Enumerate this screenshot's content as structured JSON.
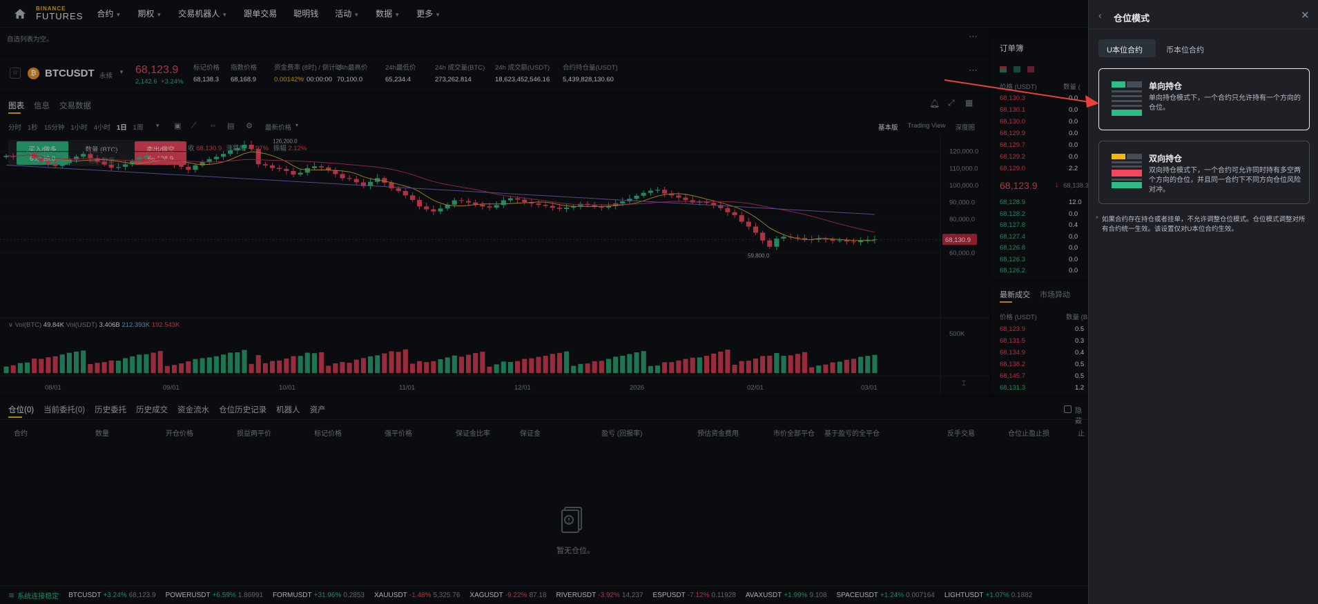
{
  "nav": {
    "logo_top": "BINANCE",
    "logo_bottom": "FUTURES",
    "items": [
      {
        "label": "合约",
        "caret": true
      },
      {
        "label": "期权",
        "caret": true
      },
      {
        "label": "交易机器人",
        "caret": true
      },
      {
        "label": "跟单交易",
        "caret": false
      },
      {
        "label": "聪明钱",
        "caret": false
      },
      {
        "label": "活动",
        "caret": true
      },
      {
        "label": "数据",
        "caret": true
      },
      {
        "label": "更多",
        "caret": true
      }
    ]
  },
  "watchlist": {
    "empty_text": "自选列表为空。"
  },
  "symbol": {
    "name": "BTCUSDT",
    "type": "永续",
    "last_price": "68,123.9",
    "change_abs": "2,142.6",
    "change_pct": "+3.24%",
    "stats": [
      {
        "label": "标记价格",
        "value": "68,138.3",
        "tone": "white"
      },
      {
        "label": "指数价格",
        "value": "68,168.9",
        "tone": "white"
      },
      {
        "label": "资金费率 (8时) / 倒计时",
        "value": "0.00142%",
        "value2": "00:00:00",
        "tone": "orange"
      },
      {
        "label": "24h最高价",
        "value": "70,100.0",
        "tone": "white"
      },
      {
        "label": "24h最低价",
        "value": "65,234.4",
        "tone": "white"
      },
      {
        "label": "24h 成交量(BTC)",
        "value": "273,262.814",
        "tone": "white"
      },
      {
        "label": "24h 成交额(USDT)",
        "value": "18,623,452,546.16",
        "tone": "white"
      },
      {
        "label": "合约持仓量(USDT)",
        "value": "5,439,828,130.60",
        "tone": "white"
      }
    ]
  },
  "chart_tabs": [
    "图表",
    "信息",
    "交易数据"
  ],
  "intervals": [
    "分时",
    "1秒",
    "15分钟",
    "1小时",
    "4小时",
    "1日",
    "1周"
  ],
  "interval_active": "1日",
  "price_type": "最新价格",
  "view_modes": [
    "基本版",
    "Trading View",
    "深度图"
  ],
  "quick_trade": {
    "buy_label": "买入/做多",
    "buy_price": "68,129.0",
    "qty_label": "数量 (BTC)",
    "qty_placeholder": "输入数量",
    "sell_label": "卖出/做空",
    "sell_price": "68,128.9"
  },
  "ohlc": {
    "close_label": "收",
    "close": "68,130.9",
    "chg_label": "涨跌幅",
    "chg": "-0.97%",
    "amp_label": "振幅",
    "amp": "2.12%"
  },
  "chart_data": {
    "type": "candlestick",
    "x_ticks": [
      "08/01",
      "09/01",
      "10/01",
      "11/01",
      "12/01",
      "2026",
      "02/01",
      "03/01"
    ],
    "y_ticks": [
      "120,000.0",
      "110,000.0",
      "100,000.0",
      "90,000.0",
      "80,000.0",
      "70,000.0",
      "60,000.0"
    ],
    "ylim": [
      56000,
      126000
    ],
    "current_price": "68,130.9",
    "high_annotation": "126,200.0",
    "low_annotation": "59,800.0",
    "close_series": [
      117500,
      116800,
      118300,
      119000,
      116000,
      114500,
      112800,
      111500,
      113200,
      115200,
      117000,
      118600,
      116200,
      114000,
      112300,
      110400,
      110900,
      112400,
      114300,
      116500,
      117800,
      116300,
      114500,
      113200,
      112200,
      111000,
      109200,
      111800,
      113900,
      115500,
      116900,
      118600,
      120700,
      121900,
      124000,
      121500,
      112500,
      111800,
      110300,
      109700,
      108500,
      106400,
      107500,
      110200,
      111300,
      110600,
      109100,
      106700,
      104300,
      103800,
      101800,
      99600,
      102100,
      104300,
      101600,
      98300,
      96700,
      94100,
      91400,
      87600,
      85900,
      84600,
      86400,
      88600,
      91200,
      90800,
      89900,
      88700,
      87600,
      86900,
      88400,
      91200,
      92400,
      91600,
      90100,
      89300,
      88500,
      87900,
      86800,
      86100,
      86900,
      87800,
      89100,
      88600,
      87300,
      86900,
      87800,
      89400,
      90600,
      92100,
      93900,
      95600,
      96900,
      97400,
      95200,
      94100,
      92800,
      91300,
      89900,
      90300,
      89700,
      88400,
      86600,
      84200,
      82400,
      78600,
      75700,
      72100,
      67500,
      63800,
      68600,
      69700,
      69300,
      68900,
      68100,
      67900,
      68400,
      68200,
      67300,
      67600,
      66900,
      66500,
      67400,
      67900,
      68100
    ],
    "ma1": {
      "name": "",
      "values": []
    },
    "volume_label": "Vol(BTC)",
    "volume_btc": "49.84K",
    "volume_usdt_label": "Vol(USDT)",
    "volume_usdt": "3.406B",
    "vol_ma1": "212.393K",
    "vol_ma2": "192.543K",
    "vol_y_tick": "500K"
  },
  "orderbook": {
    "title": "订单簿",
    "col_price": "价格 (USDT)",
    "col_qty": "数量 (",
    "asks": [
      {
        "p": "68,130.3",
        "q": "0.0"
      },
      {
        "p": "68,130.1",
        "q": "0.0"
      },
      {
        "p": "68,130.0",
        "q": "0.0"
      },
      {
        "p": "68,129.9",
        "q": "0.0"
      },
      {
        "p": "68,129.7",
        "q": "0.0"
      },
      {
        "p": "68,129.2",
        "q": "0.0"
      },
      {
        "p": "68,129.0",
        "q": "2.2"
      }
    ],
    "mid": "68,123.9",
    "mid_mark": "68,138.3",
    "bids": [
      {
        "p": "68,128.9",
        "q": "12.0"
      },
      {
        "p": "68,128.2",
        "q": "0.0"
      },
      {
        "p": "68,127.8",
        "q": "0.4"
      },
      {
        "p": "68,127.4",
        "q": "0.0"
      },
      {
        "p": "68,126.8",
        "q": "0.0"
      },
      {
        "p": "68,126.3",
        "q": "0.0"
      },
      {
        "p": "68,126.2",
        "q": "0.0"
      }
    ]
  },
  "trades": {
    "tab1": "最新成交",
    "tab2": "市场异动",
    "col_price": "价格 (USDT)",
    "col_qty": "数量 (B",
    "rows": [
      {
        "p": "68,123.9",
        "q": "0.5",
        "c": "red"
      },
      {
        "p": "68,131.5",
        "q": "0.3",
        "c": "red"
      },
      {
        "p": "68,134.9",
        "q": "0.4",
        "c": "red"
      },
      {
        "p": "68,138.2",
        "q": "0.5",
        "c": "red"
      },
      {
        "p": "68,145.7",
        "q": "0.5",
        "c": "red"
      },
      {
        "p": "68,131.3",
        "q": "1.2",
        "c": "green"
      }
    ]
  },
  "positions": {
    "tabs": [
      "仓位(0)",
      "当前委托(0)",
      "历史委托",
      "历史成交",
      "资金流水",
      "仓位历史记录",
      "机器人",
      "资产"
    ],
    "hide_label": "隐藏",
    "columns": [
      "合约",
      "数量",
      "开仓价格",
      "损益两平价",
      "标记价格",
      "强平价格",
      "保证金比率",
      "保证金",
      "盈亏 (回报率)",
      "预估资金费用",
      "市价全部平仓",
      "基于盈亏的全平仓",
      "反手交易",
      "仓位止盈止损",
      "止"
    ],
    "empty": "暂无仓位。"
  },
  "ticker": {
    "status": "系统连接稳定",
    "items": [
      {
        "s": "BTCUSDT",
        "c": "+3.24%",
        "p": "68,123.9"
      },
      {
        "s": "POWERUSDT",
        "c": "+6.59%",
        "p": "1.86991"
      },
      {
        "s": "FORMUSDT",
        "c": "+31.96%",
        "p": "0.2853"
      },
      {
        "s": "XAUUSDT",
        "c": "-1.48%",
        "p": "5,325.76"
      },
      {
        "s": "XAGUSDT",
        "c": "-9.22%",
        "p": "87.18"
      },
      {
        "s": "RIVERUSDT",
        "c": "-3.92%",
        "p": "14.237"
      },
      {
        "s": "ESPUSDT",
        "c": "-7.12%",
        "p": "0.11928"
      },
      {
        "s": "AVAXUSDT",
        "c": "+1.99%",
        "p": "9.108"
      },
      {
        "s": "SPACEUSDT",
        "c": "+1.24%",
        "p": "0.007164"
      },
      {
        "s": "LIGHTUSDT",
        "c": "+1.07%",
        "p": "0.1882"
      }
    ]
  },
  "drawer": {
    "title": "仓位模式",
    "tabs": [
      "U本位合约",
      "币本位合约"
    ],
    "tab_active": "U本位合约",
    "options": [
      {
        "title": "单向持仓",
        "desc": "单向持仓模式下，一个合约只允许持有一个方向的仓位。",
        "selected": true
      },
      {
        "title": "双向持仓",
        "desc": "双向持仓模式下，一个合约可允许同时持有多空两个方向的仓位，并且同一合约下不同方向仓位风险对冲。",
        "selected": false
      }
    ],
    "note": "如果合约存在持仓或者挂单，不允许调整仓位模式。仓位模式调整对所有合约统一生效。该设置仅对U本位合约生效。"
  },
  "colors": {
    "up": "#2ebd85",
    "down": "#f6465d",
    "accent": "#f0b90b",
    "bg": "#0b0e11",
    "panel": "#0f1115",
    "drawer": "#1e2026"
  }
}
